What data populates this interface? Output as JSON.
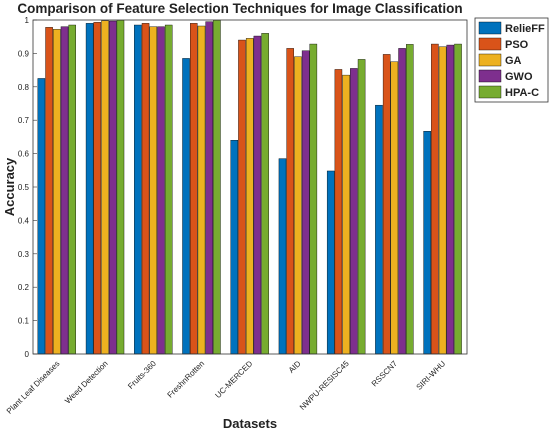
{
  "chart_data": {
    "type": "bar",
    "title": "Comparison of Feature Selection Techniques for Image Classification",
    "x_label": "Datasets",
    "y_label": "Accuracy",
    "categories": [
      "Plant Leaf Diseases",
      "Weed Detection",
      "Fruits-360",
      "FreshnRotten",
      "UC-MERCED",
      "AID",
      "NWPU-RESISC45",
      "RSSCN7",
      "SIRI-WHU"
    ],
    "series": [
      {
        "name": "RelieFF",
        "color": "#0072BD",
        "values": [
          0.825,
          0.99,
          0.985,
          0.885,
          0.64,
          0.585,
          0.548,
          0.745,
          0.667
        ]
      },
      {
        "name": "PSO",
        "color": "#D95319",
        "values": [
          0.978,
          0.993,
          0.99,
          0.99,
          0.94,
          0.915,
          0.852,
          0.897,
          0.928
        ]
      },
      {
        "name": "GA",
        "color": "#EDB120",
        "values": [
          0.972,
          0.998,
          0.98,
          0.982,
          0.945,
          0.89,
          0.835,
          0.875,
          0.92
        ]
      },
      {
        "name": "GWO",
        "color": "#7E2F8E",
        "values": [
          0.98,
          0.997,
          0.98,
          0.995,
          0.952,
          0.908,
          0.855,
          0.915,
          0.925
        ]
      },
      {
        "name": "HPA-C",
        "color": "#77AC30",
        "values": [
          0.985,
          0.999,
          0.985,
          0.999,
          0.96,
          0.928,
          0.882,
          0.927,
          0.928
        ]
      }
    ],
    "ylim": [
      0,
      1
    ],
    "yticks": [
      0,
      0.1,
      0.2,
      0.3,
      0.4,
      0.5,
      0.6,
      0.7,
      0.8,
      0.9,
      1
    ],
    "legend": "top-right"
  }
}
